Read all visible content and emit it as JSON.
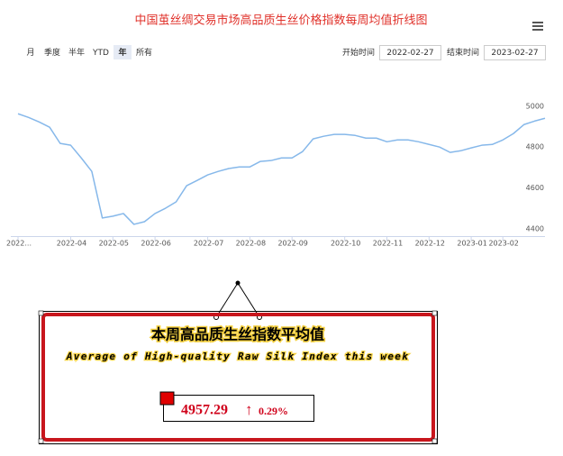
{
  "chart_data": {
    "type": "line",
    "title": "中国茧丝绸交易市场高品质生丝价格指数每周均值折线图",
    "categories": [
      "2022...",
      null,
      null,
      null,
      null,
      "2022-04",
      null,
      null,
      null,
      "2022-05",
      null,
      null,
      null,
      "2022-06",
      null,
      null,
      null,
      null,
      "2022-07",
      null,
      null,
      null,
      "2022-08",
      null,
      null,
      null,
      "2022-09",
      null,
      null,
      null,
      null,
      "2022-10",
      null,
      null,
      null,
      "2022-11",
      null,
      null,
      null,
      "2022-12",
      null,
      null,
      null,
      "2023-01",
      null,
      null,
      "2023-02",
      null,
      null,
      null,
      null
    ],
    "values": [
      4963,
      4945,
      4923,
      4897,
      4818,
      4809,
      4747,
      4681,
      4453,
      4462,
      4475,
      4422,
      4435,
      4475,
      4501,
      4532,
      4611,
      4637,
      4664,
      4681,
      4695,
      4703,
      4703,
      4730,
      4734,
      4747,
      4747,
      4778,
      4840,
      4853,
      4862,
      4862,
      4857,
      4844,
      4844,
      4826,
      4835,
      4835,
      4826,
      4813,
      4800,
      4774,
      4782,
      4796,
      4809,
      4813,
      4835,
      4866,
      4910,
      4927,
      4941
    ],
    "color": "#86b8ea",
    "ylim": [
      4360,
      5200
    ],
    "yticks": [
      4400,
      4600,
      4800,
      5000
    ],
    "grid": false
  },
  "toolbar": {
    "ranges": [
      "月",
      "季度",
      "半年",
      "YTD",
      "年",
      "所有"
    ],
    "selected": 4,
    "start_label": "开始时间",
    "start_date": "2022-02-27",
    "end_label": "结束时间",
    "end_date": "2023-02-27"
  },
  "panel": {
    "title": "本周高品质生丝指数平均值",
    "subtitle": "Average of High-quality Raw Silk Index this week",
    "value": "4957.29",
    "arrow": "↑",
    "change": "0.29%"
  }
}
